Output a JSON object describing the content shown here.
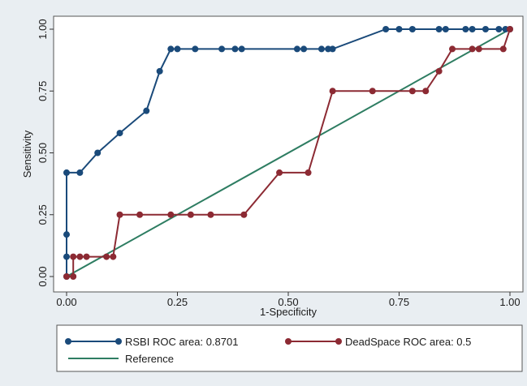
{
  "chart_data": {
    "type": "line",
    "title": "",
    "xlabel": "1-Specificity",
    "ylabel": "Sensitivity",
    "xlim": [
      0,
      1
    ],
    "ylim": [
      0,
      1
    ],
    "x_ticks": [
      "0.00",
      "0.25",
      "0.50",
      "0.75",
      "1.00"
    ],
    "y_ticks": [
      "0.00",
      "0.25",
      "0.50",
      "0.75",
      "1.00"
    ],
    "grid": false,
    "legend_position": "bottom",
    "series": [
      {
        "name": "RSBI ROC area: 0.8701",
        "color": "#1a4a7a",
        "markers": true,
        "x": [
          0,
          0,
          0,
          0,
          0.03,
          0.07,
          0.12,
          0.18,
          0.21,
          0.235,
          0.25,
          0.29,
          0.35,
          0.38,
          0.395,
          0.52,
          0.535,
          0.575,
          0.59,
          0.6,
          0.72,
          0.75,
          0.78,
          0.84,
          0.855,
          0.9,
          0.915,
          0.945,
          0.975,
          0.99,
          1.0
        ],
        "y": [
          0,
          0.08,
          0.17,
          0.42,
          0.42,
          0.5,
          0.58,
          0.67,
          0.83,
          0.92,
          0.92,
          0.92,
          0.92,
          0.92,
          0.92,
          0.92,
          0.92,
          0.92,
          0.92,
          0.92,
          1.0,
          1.0,
          1.0,
          1.0,
          1.0,
          1.0,
          1.0,
          1.0,
          1.0,
          1.0,
          1.0
        ]
      },
      {
        "name": "DeadSpace ROC area: 0.5",
        "color": "#8c2a33",
        "markers": true,
        "x": [
          0,
          0.015,
          0.015,
          0.03,
          0.045,
          0.09,
          0.105,
          0.12,
          0.165,
          0.235,
          0.28,
          0.325,
          0.4,
          0.48,
          0.545,
          0.6,
          0.69,
          0.78,
          0.81,
          0.84,
          0.87,
          0.915,
          0.93,
          0.985,
          1.0
        ],
        "y": [
          0,
          0,
          0.08,
          0.08,
          0.08,
          0.08,
          0.08,
          0.25,
          0.25,
          0.25,
          0.25,
          0.25,
          0.25,
          0.42,
          0.42,
          0.75,
          0.75,
          0.75,
          0.75,
          0.83,
          0.92,
          0.92,
          0.92,
          0.92,
          1.0
        ]
      },
      {
        "name": "Reference",
        "color": "#2e7d62",
        "markers": false,
        "x": [
          0,
          1
        ],
        "y": [
          0,
          1
        ]
      }
    ]
  }
}
